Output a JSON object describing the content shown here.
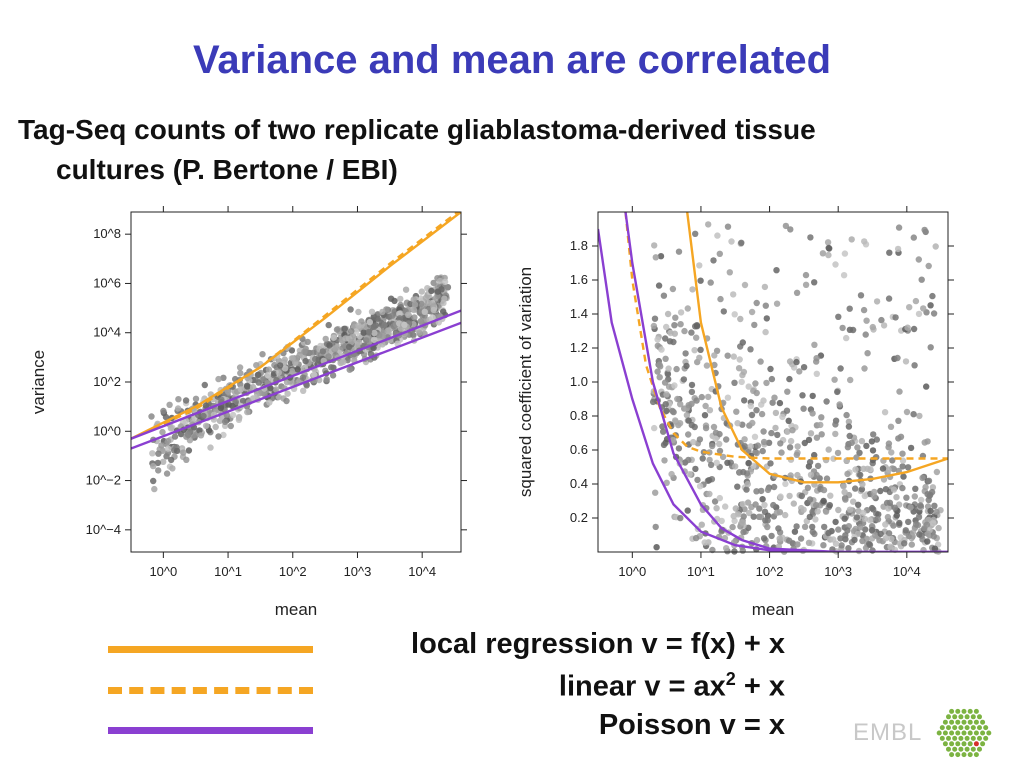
{
  "slide": {
    "title": "Variance and mean are correlated",
    "subtitle_line1": "Tag-Seq counts of two replicate gliablastoma-derived tissue",
    "subtitle_line2": "cultures (P. Bertone / EBI)"
  },
  "legend": [
    {
      "label": "local regression  v = f(x) + x",
      "color": "#f5a623",
      "style": "solid"
    },
    {
      "label_main": "linear v = ax",
      "label_sup": "2",
      "label_tail": " + x",
      "color": "#f5a623",
      "style": "dashed"
    },
    {
      "label": "Poisson v = x",
      "color": "#8a3fd1",
      "style": "solid"
    }
  ],
  "logo": {
    "text": "EMBL",
    "icon": "embl-hexagon-logo"
  },
  "chart_data": [
    {
      "type": "scatter",
      "scale": "log10",
      "xlabel": "mean",
      "ylabel": "variance",
      "xlim": [
        -0.5,
        4.6
      ],
      "ylim": [
        -4.9,
        8.9
      ],
      "x_ticks": [
        0,
        1,
        2,
        3,
        4
      ],
      "x_tick_labels": [
        "10^0",
        "10^1",
        "10^2",
        "10^3",
        "10^4"
      ],
      "y_ticks": [
        -4,
        -2,
        0,
        2,
        4,
        6,
        8
      ],
      "y_tick_labels": [
        "10^−4",
        "10^−2",
        "10^0",
        "10^2",
        "10^4",
        "10^6",
        "10^8"
      ],
      "points": "hexbin density of genes, grey",
      "lines": [
        {
          "name": "local regression",
          "color": "#f5a623",
          "style": "solid",
          "x": [
            -0.5,
            0.5,
            1.5,
            2.5,
            3.5,
            4.6
          ],
          "y": [
            -0.3,
            1.0,
            2.6,
            4.6,
            6.7,
            8.9
          ]
        },
        {
          "name": "linear",
          "color": "#f5a623",
          "style": "dashed",
          "x": [
            -0.5,
            0.5,
            1.5,
            2.5,
            3.5,
            4.6
          ],
          "y": [
            -0.3,
            0.9,
            2.6,
            4.7,
            6.8,
            9.0
          ]
        },
        {
          "name": "Poisson",
          "color": "#8a3fd1",
          "style": "solid",
          "x": [
            -0.5,
            4.6
          ],
          "y": [
            -0.3,
            4.9
          ]
        },
        {
          "name": "Poisson",
          "color": "#8a3fd1",
          "style": "solid",
          "x": [
            -0.5,
            4.6
          ],
          "y": [
            -0.7,
            4.4
          ]
        }
      ]
    },
    {
      "type": "scatter",
      "scale": "log10-x",
      "xlabel": "mean",
      "ylabel": "squared coefficient of variation",
      "xlim": [
        -0.5,
        4.6
      ],
      "ylim": [
        0,
        2
      ],
      "x_ticks": [
        0,
        1,
        2,
        3,
        4
      ],
      "x_tick_labels": [
        "10^0",
        "10^1",
        "10^2",
        "10^3",
        "10^4"
      ],
      "y_ticks": [
        0.2,
        0.4,
        0.6,
        0.8,
        1.0,
        1.2,
        1.4,
        1.6,
        1.8
      ],
      "y_tick_labels": [
        "0.2",
        "0.4",
        "0.6",
        "0.8",
        "1.0",
        "1.2",
        "1.4",
        "1.6",
        "1.8"
      ],
      "points": "hexbin density of genes, grey",
      "lines": [
        {
          "name": "local regression",
          "color": "#f5a623",
          "style": "solid",
          "x": [
            0.8,
            1.0,
            1.3,
            1.6,
            2.0,
            2.5,
            3.0,
            3.5,
            4.0,
            4.6
          ],
          "y": [
            2.0,
            1.35,
            0.85,
            0.6,
            0.46,
            0.41,
            0.41,
            0.43,
            0.47,
            0.55
          ]
        },
        {
          "name": "linear",
          "color": "#f5a623",
          "style": "dashed",
          "x": [
            -0.1,
            0.0,
            0.2,
            0.4,
            0.6,
            0.8,
            1.0,
            1.5,
            2.0,
            3.0,
            4.0,
            4.6
          ],
          "y": [
            2.0,
            1.6,
            1.1,
            0.85,
            0.7,
            0.62,
            0.59,
            0.56,
            0.55,
            0.55,
            0.55,
            0.55
          ]
        },
        {
          "name": "Poisson",
          "color": "#8a3fd1",
          "style": "solid",
          "x": [
            -0.5,
            -0.3,
            0.0,
            0.3,
            0.6,
            1.0,
            1.5,
            2.0,
            3.0,
            4.6
          ],
          "y": [
            1.9,
            1.35,
            0.9,
            0.52,
            0.28,
            0.12,
            0.04,
            0.01,
            0.0,
            0.0
          ]
        },
        {
          "name": "Poisson",
          "color": "#8a3fd1",
          "style": "solid",
          "x": [
            -0.1,
            0.0,
            0.3,
            0.6,
            1.0,
            1.3,
            1.6,
            2.0,
            3.0,
            4.6
          ],
          "y": [
            2.0,
            1.7,
            1.0,
            0.58,
            0.28,
            0.14,
            0.07,
            0.02,
            0.0,
            0.0
          ]
        }
      ]
    }
  ]
}
